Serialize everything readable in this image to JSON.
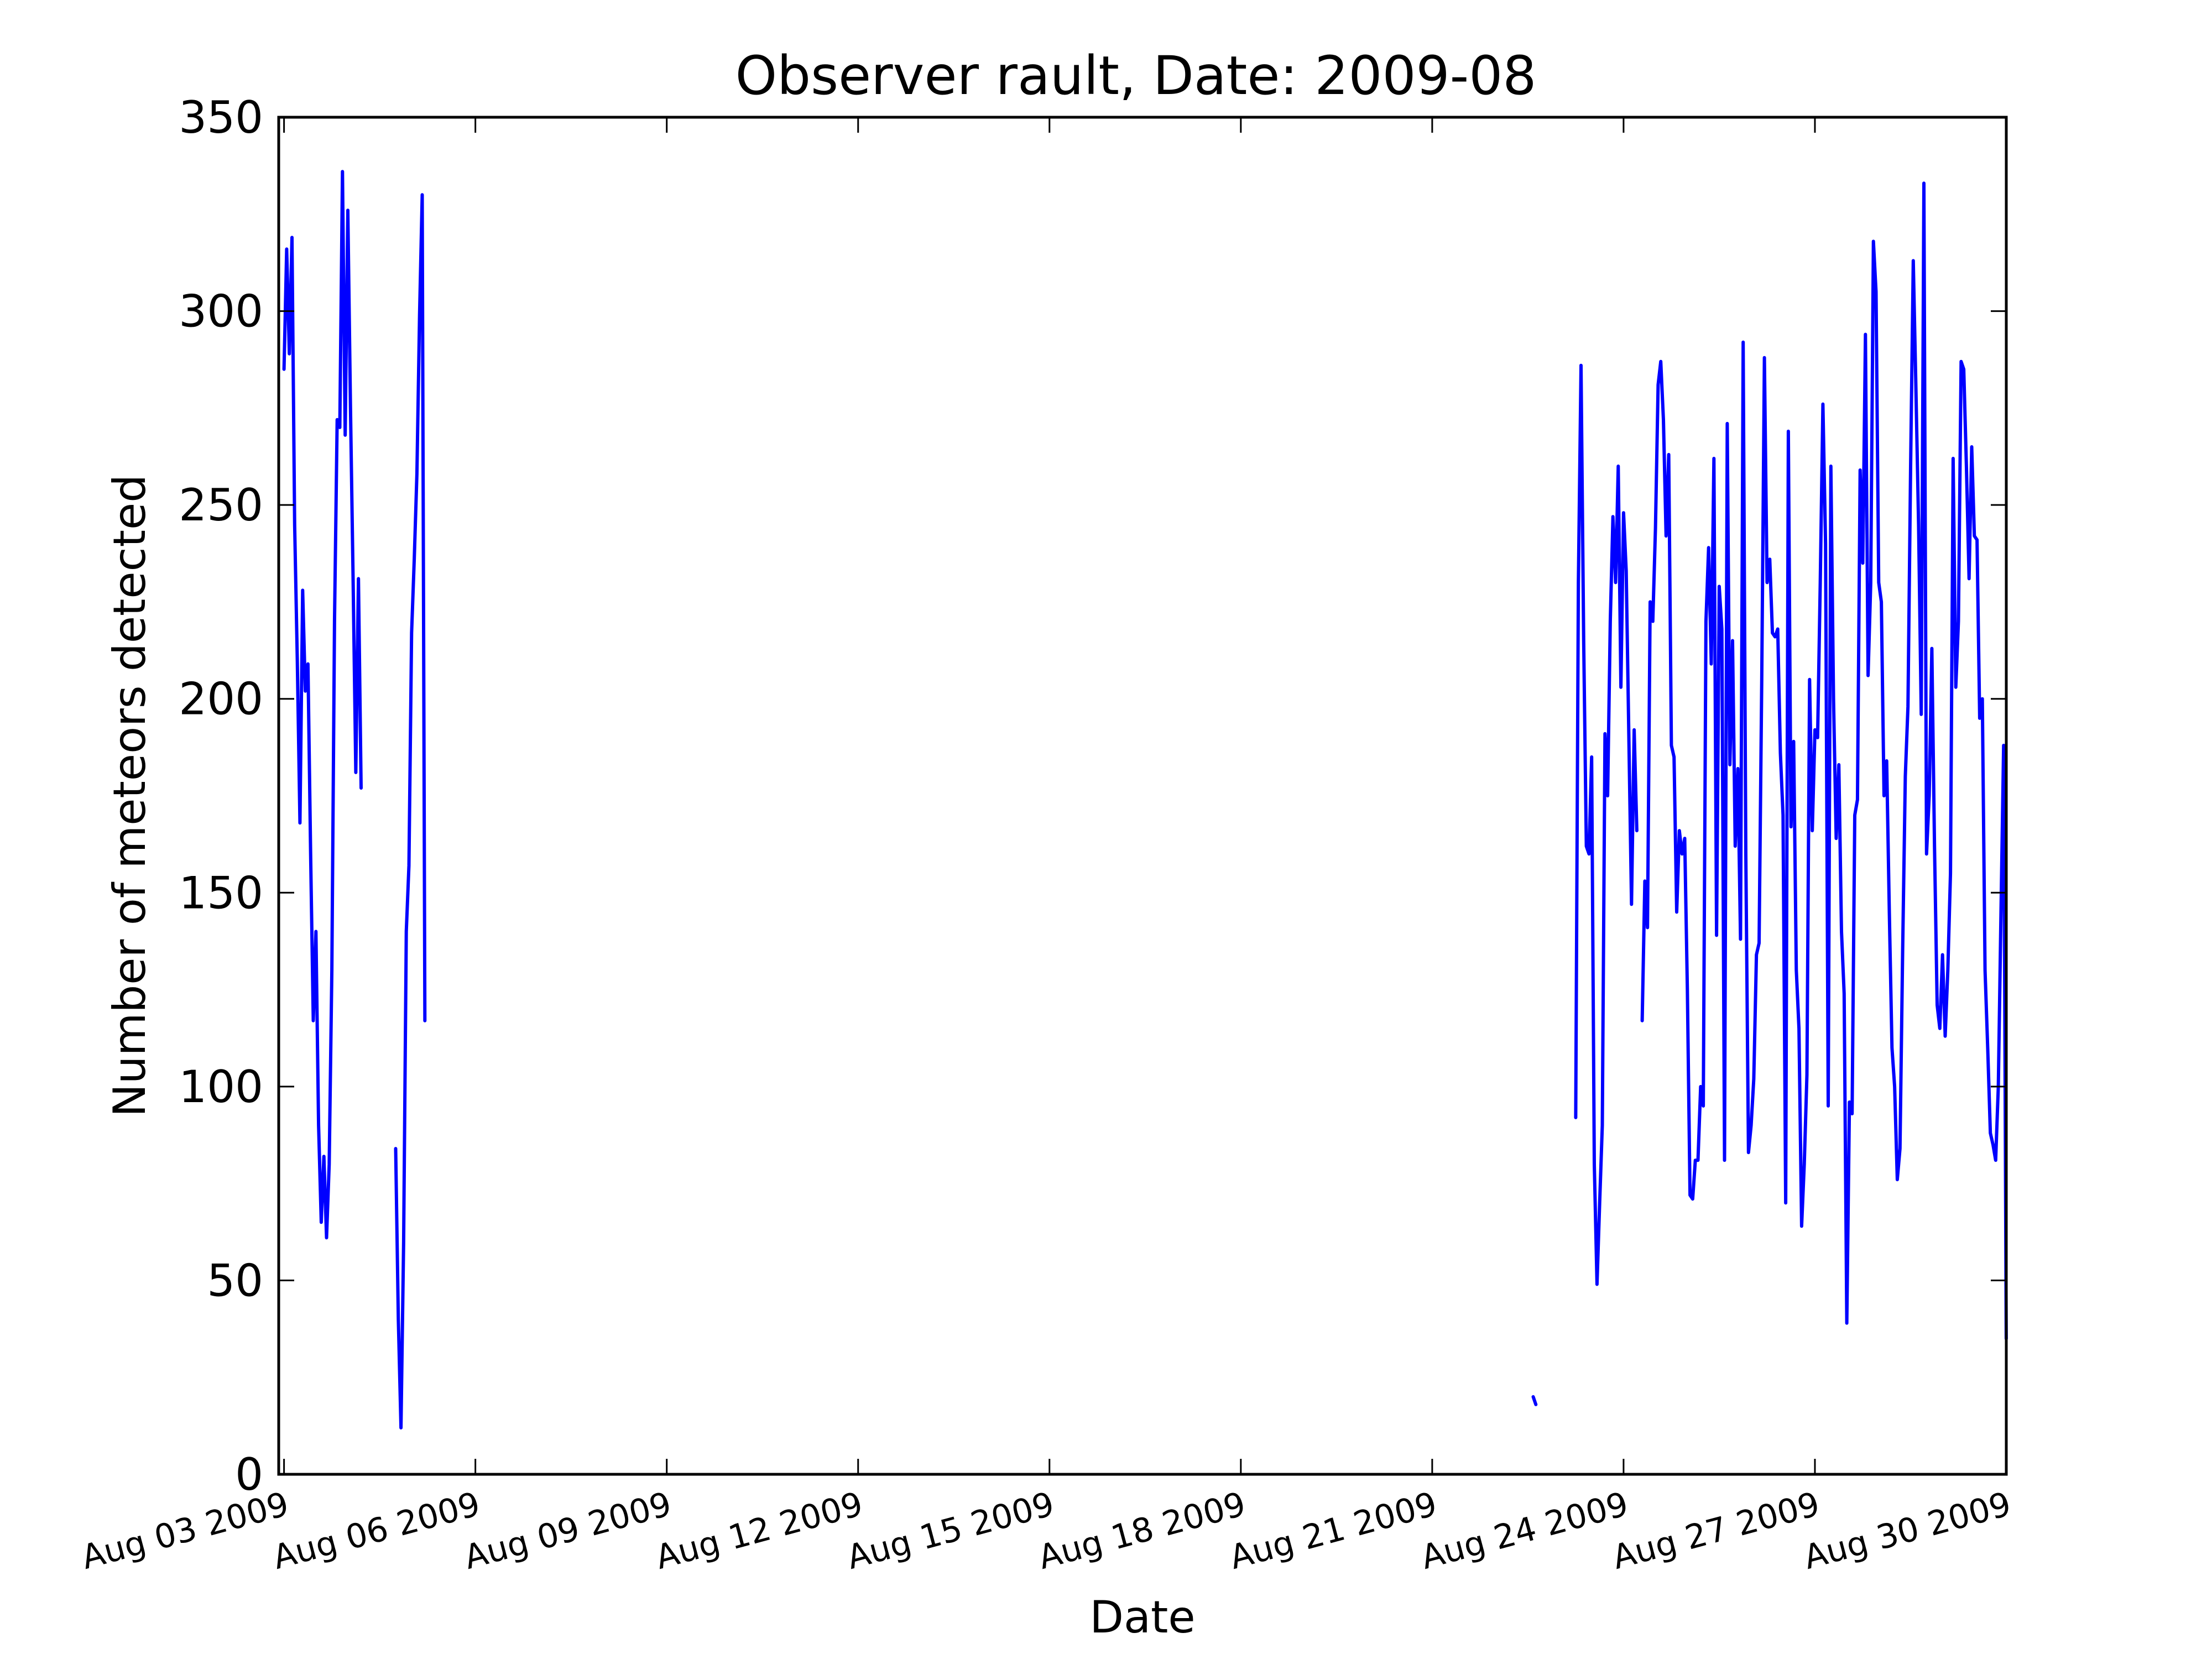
{
  "chart_data": {
    "type": "line",
    "title": "Observer rault, Date: 2009-08",
    "xlabel": "Date",
    "ylabel": "Number of meteors detected",
    "xlim": [
      "2009-08-02T00:00",
      "2009-08-01T00:00"
    ],
    "ylim": [
      0,
      350
    ],
    "yticks": [
      0,
      50,
      100,
      150,
      200,
      250,
      300,
      350
    ],
    "ytick_labels": [
      "0",
      "50",
      "100",
      "150",
      "200",
      "250",
      "300",
      "350"
    ],
    "xticks": [
      "2009-08-03",
      "2009-08-06",
      "2009-08-09",
      "2009-08-12",
      "2009-08-15",
      "2009-08-18",
      "2009-08-21",
      "2009-08-24",
      "2009-08-27",
      "2009-08-30"
    ],
    "xtick_labels": [
      "Aug 03 2009",
      "Aug 06 2009",
      "Aug 09 2009",
      "Aug 12 2009",
      "Aug 15 2009",
      "Aug 18 2009",
      "Aug 21 2009",
      "Aug 24 2009",
      "Aug 27 2009",
      "Aug 30 2009"
    ],
    "grid": false,
    "legend": "none",
    "color": "#0000ff",
    "series": [
      {
        "segments": [
          [
            [
              "2009-08-03T00:00",
              285
            ],
            [
              "2009-08-03T01:00",
              316
            ],
            [
              "2009-08-03T02:00",
              289
            ],
            [
              "2009-08-03T03:00",
              319
            ],
            [
              "2009-08-03T04:00",
              245
            ],
            [
              "2009-08-03T05:00",
              210
            ],
            [
              "2009-08-03T06:00",
              168
            ],
            [
              "2009-08-03T07:00",
              228
            ],
            [
              "2009-08-03T08:00",
              202
            ],
            [
              "2009-08-03T09:00",
              209
            ],
            [
              "2009-08-03T10:00",
              160
            ],
            [
              "2009-08-03T11:00",
              117
            ],
            [
              "2009-08-03T12:00",
              140
            ],
            [
              "2009-08-03T13:00",
              90
            ],
            [
              "2009-08-03T14:00",
              65
            ],
            [
              "2009-08-03T15:00",
              82
            ],
            [
              "2009-08-03T16:00",
              61
            ],
            [
              "2009-08-03T17:00",
              80
            ],
            [
              "2009-08-03T18:00",
              130
            ],
            [
              "2009-08-03T19:00",
              220
            ],
            [
              "2009-08-03T20:00",
              272
            ],
            [
              "2009-08-03T21:00",
              270
            ],
            [
              "2009-08-03T22:00",
              336
            ],
            [
              "2009-08-03T23:00",
              268
            ],
            [
              "2009-08-04T00:00",
              326
            ],
            [
              "2009-08-04T01:00",
              275
            ],
            [
              "2009-08-04T02:00",
              230
            ],
            [
              "2009-08-04T03:00",
              181
            ],
            [
              "2009-08-04T04:00",
              231
            ],
            [
              "2009-08-04T05:00",
              177
            ]
          ],
          [
            [
              "2009-08-04T18:00",
              84
            ],
            [
              "2009-08-04T19:00",
              40
            ],
            [
              "2009-08-04T20:00",
              12
            ],
            [
              "2009-08-04T21:00",
              60
            ],
            [
              "2009-08-04T22:00",
              140
            ],
            [
              "2009-08-04T23:00",
              157
            ],
            [
              "2009-08-05T00:00",
              217
            ],
            [
              "2009-08-05T01:00",
              236
            ],
            [
              "2009-08-05T02:00",
              258
            ],
            [
              "2009-08-05T03:00",
              299
            ],
            [
              "2009-08-05T04:00",
              330
            ],
            [
              "2009-08-05T05:00",
              117
            ]
          ],
          [
            [
              "2009-08-22T14:00",
              20
            ],
            [
              "2009-08-22T15:00",
              18
            ]
          ],
          [
            [
              "2009-08-23T06:00",
              92
            ],
            [
              "2009-08-23T07:00",
              230
            ],
            [
              "2009-08-23T08:00",
              286
            ],
            [
              "2009-08-23T09:00",
              215
            ],
            [
              "2009-08-23T10:00",
              162
            ],
            [
              "2009-08-23T11:00",
              160
            ],
            [
              "2009-08-23T12:00",
              185
            ],
            [
              "2009-08-23T13:00",
              80
            ],
            [
              "2009-08-23T14:00",
              49
            ],
            [
              "2009-08-23T15:00",
              70
            ],
            [
              "2009-08-23T16:00",
              90
            ],
            [
              "2009-08-23T17:00",
              191
            ],
            [
              "2009-08-23T18:00",
              175
            ],
            [
              "2009-08-23T19:00",
              220
            ],
            [
              "2009-08-23T20:00",
              247
            ],
            [
              "2009-08-23T21:00",
              230
            ],
            [
              "2009-08-23T22:00",
              260
            ],
            [
              "2009-08-23T23:00",
              203
            ],
            [
              "2009-08-24T00:00",
              248
            ],
            [
              "2009-08-24T01:00",
              233
            ],
            [
              "2009-08-24T02:00",
              190
            ],
            [
              "2009-08-24T03:00",
              147
            ],
            [
              "2009-08-24T04:00",
              192
            ],
            [
              "2009-08-24T05:00",
              166
            ]
          ],
          [
            [
              "2009-08-24T07:00",
              117
            ],
            [
              "2009-08-24T08:00",
              153
            ],
            [
              "2009-08-24T09:00",
              141
            ],
            [
              "2009-08-24T10:00",
              225
            ],
            [
              "2009-08-24T11:00",
              220
            ],
            [
              "2009-08-24T12:00",
              244
            ],
            [
              "2009-08-24T13:00",
              281
            ],
            [
              "2009-08-24T14:00",
              287
            ],
            [
              "2009-08-24T15:00",
              272
            ],
            [
              "2009-08-24T16:00",
              242
            ],
            [
              "2009-08-24T17:00",
              263
            ],
            [
              "2009-08-24T18:00",
              188
            ],
            [
              "2009-08-24T19:00",
              185
            ],
            [
              "2009-08-24T20:00",
              145
            ],
            [
              "2009-08-24T21:00",
              166
            ],
            [
              "2009-08-24T22:00",
              160
            ],
            [
              "2009-08-24T23:00",
              164
            ],
            [
              "2009-08-25T00:00",
              125
            ],
            [
              "2009-08-25T01:00",
              72
            ],
            [
              "2009-08-25T02:00",
              71
            ],
            [
              "2009-08-25T03:00",
              81
            ],
            [
              "2009-08-25T04:00",
              81
            ],
            [
              "2009-08-25T05:00",
              100
            ],
            [
              "2009-08-25T06:00",
              95
            ],
            [
              "2009-08-25T07:00",
              220
            ],
            [
              "2009-08-25T08:00",
              239
            ],
            [
              "2009-08-25T09:00",
              209
            ],
            [
              "2009-08-25T10:00",
              262
            ],
            [
              "2009-08-25T11:00",
              139
            ],
            [
              "2009-08-25T12:00",
              229
            ],
            [
              "2009-08-25T13:00",
              218
            ],
            [
              "2009-08-25T14:00",
              81
            ],
            [
              "2009-08-25T15:00",
              271
            ],
            [
              "2009-08-25T16:00",
              183
            ],
            [
              "2009-08-25T17:00",
              215
            ],
            [
              "2009-08-25T18:00",
              162
            ],
            [
              "2009-08-25T19:00",
              182
            ],
            [
              "2009-08-25T20:00",
              138
            ],
            [
              "2009-08-25T21:00",
              292
            ],
            [
              "2009-08-25T22:00",
              160
            ],
            [
              "2009-08-25T23:00",
              83
            ],
            [
              "2009-08-26T00:00",
              90
            ],
            [
              "2009-08-26T01:00",
              102
            ],
            [
              "2009-08-26T02:00",
              134
            ],
            [
              "2009-08-26T03:00",
              137
            ],
            [
              "2009-08-26T04:00",
              205
            ],
            [
              "2009-08-26T05:00",
              288
            ],
            [
              "2009-08-26T06:00",
              230
            ],
            [
              "2009-08-26T07:00",
              236
            ],
            [
              "2009-08-26T08:00",
              217
            ],
            [
              "2009-08-26T09:00",
              216
            ],
            [
              "2009-08-26T10:00",
              218
            ],
            [
              "2009-08-26T11:00",
              186
            ],
            [
              "2009-08-26T12:00",
              170
            ],
            [
              "2009-08-26T13:00",
              70
            ],
            [
              "2009-08-26T14:00",
              269
            ],
            [
              "2009-08-26T15:00",
              167
            ],
            [
              "2009-08-26T16:00",
              189
            ],
            [
              "2009-08-26T17:00",
              130
            ],
            [
              "2009-08-26T18:00",
              115
            ],
            [
              "2009-08-26T19:00",
              64
            ],
            [
              "2009-08-26T20:00",
              80
            ],
            [
              "2009-08-26T21:00",
              103
            ],
            [
              "2009-08-26T22:00",
              205
            ],
            [
              "2009-08-26T23:00",
              166
            ],
            [
              "2009-08-27T00:00",
              192
            ],
            [
              "2009-08-27T01:00",
              190
            ],
            [
              "2009-08-27T02:00",
              230
            ],
            [
              "2009-08-27T03:00",
              276
            ],
            [
              "2009-08-27T04:00",
              240
            ],
            [
              "2009-08-27T05:00",
              95
            ],
            [
              "2009-08-27T06:00",
              260
            ],
            [
              "2009-08-27T07:00",
              200
            ],
            [
              "2009-08-27T08:00",
              164
            ],
            [
              "2009-08-27T09:00",
              183
            ],
            [
              "2009-08-27T10:00",
              140
            ],
            [
              "2009-08-27T11:00",
              124
            ],
            [
              "2009-08-27T12:00",
              39
            ],
            [
              "2009-08-27T13:00",
              96
            ],
            [
              "2009-08-27T14:00",
              93
            ],
            [
              "2009-08-27T15:00",
              170
            ],
            [
              "2009-08-27T16:00",
              174
            ],
            [
              "2009-08-27T17:00",
              259
            ],
            [
              "2009-08-27T18:00",
              235
            ],
            [
              "2009-08-27T19:00",
              294
            ],
            [
              "2009-08-27T20:00",
              206
            ],
            [
              "2009-08-27T21:00",
              230
            ],
            [
              "2009-08-27T22:00",
              318
            ],
            [
              "2009-08-27T23:00",
              305
            ],
            [
              "2009-08-28T00:00",
              230
            ],
            [
              "2009-08-28T01:00",
              225
            ],
            [
              "2009-08-28T02:00",
              175
            ],
            [
              "2009-08-28T03:00",
              184
            ],
            [
              "2009-08-28T04:00",
              145
            ],
            [
              "2009-08-28T05:00",
              110
            ],
            [
              "2009-08-28T06:00",
              100
            ],
            [
              "2009-08-28T07:00",
              76
            ],
            [
              "2009-08-28T08:00",
              84
            ],
            [
              "2009-08-28T09:00",
              135
            ],
            [
              "2009-08-28T10:00",
              180
            ],
            [
              "2009-08-28T11:00",
              198
            ],
            [
              "2009-08-28T12:00",
              260
            ],
            [
              "2009-08-28T13:00",
              313
            ],
            [
              "2009-08-28T14:00",
              280
            ],
            [
              "2009-08-28T15:00",
              245
            ],
            [
              "2009-08-28T16:00",
              196
            ],
            [
              "2009-08-28T17:00",
              333
            ],
            [
              "2009-08-28T18:00",
              160
            ],
            [
              "2009-08-28T19:00",
              175
            ],
            [
              "2009-08-28T20:00",
              213
            ],
            [
              "2009-08-28T21:00",
              162
            ],
            [
              "2009-08-28T22:00",
              121
            ],
            [
              "2009-08-28T23:00",
              115
            ],
            [
              "2009-08-29T00:00",
              134
            ],
            [
              "2009-08-29T01:00",
              113
            ],
            [
              "2009-08-29T02:00",
              130
            ],
            [
              "2009-08-29T03:00",
              155
            ],
            [
              "2009-08-29T04:00",
              262
            ],
            [
              "2009-08-29T05:00",
              203
            ],
            [
              "2009-08-29T06:00",
              220
            ],
            [
              "2009-08-29T07:00",
              287
            ],
            [
              "2009-08-29T08:00",
              285
            ],
            [
              "2009-08-29T09:00",
              260
            ],
            [
              "2009-08-29T10:00",
              231
            ],
            [
              "2009-08-29T11:00",
              265
            ],
            [
              "2009-08-29T12:00",
              242
            ],
            [
              "2009-08-29T13:00",
              241
            ],
            [
              "2009-08-29T14:00",
              195
            ],
            [
              "2009-08-29T15:00",
              200
            ],
            [
              "2009-08-29T16:00",
              130
            ],
            [
              "2009-08-29T17:00",
              110
            ],
            [
              "2009-08-29T18:00",
              88
            ],
            [
              "2009-08-29T19:00",
              85
            ],
            [
              "2009-08-29T20:00",
              81
            ],
            [
              "2009-08-29T21:00",
              100
            ],
            [
              "2009-08-29T22:00",
              145
            ],
            [
              "2009-08-29T23:00",
              188
            ],
            [
              "2009-08-29T23:59",
              35
            ]
          ]
        ]
      }
    ]
  }
}
